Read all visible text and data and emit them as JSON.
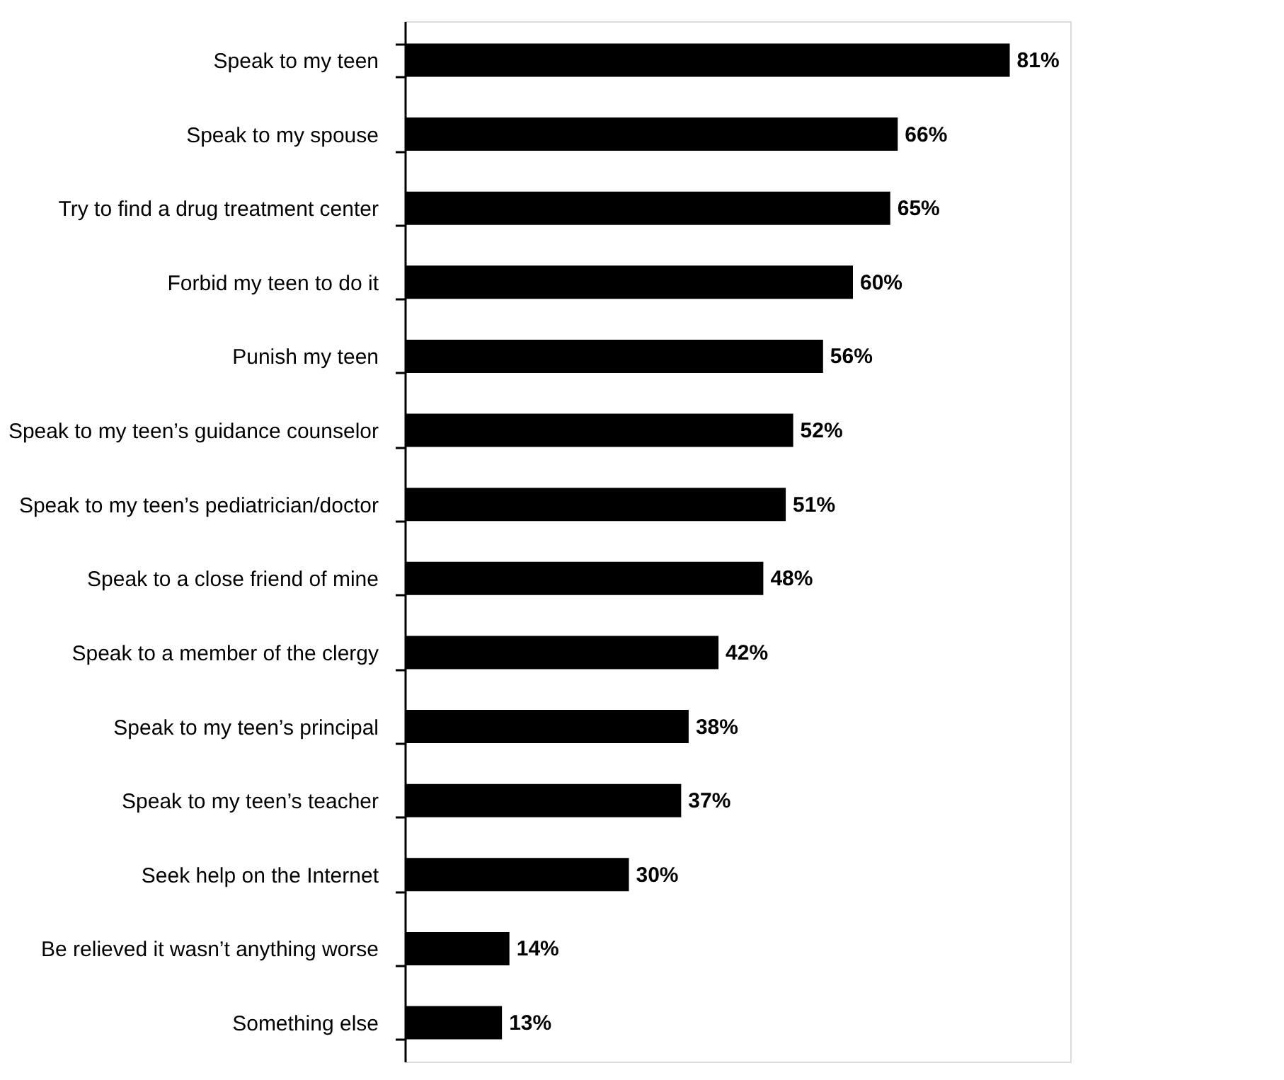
{
  "chart_data": {
    "type": "bar",
    "orientation": "horizontal",
    "categories": [
      "Speak to my teen",
      "Speak to my spouse",
      "Try to find a drug treatment center",
      "Forbid my teen to do it",
      "Punish my teen",
      "Speak to my teen’s guidance counselor",
      "Speak to my teen’s pediatrician/doctor",
      "Speak to a close friend of mine",
      "Speak to a member of the clergy",
      "Speak to my teen’s principal",
      "Speak to my teen’s teacher",
      "Seek help on the Internet",
      "Be relieved it wasn’t anything worse",
      "Something else"
    ],
    "values": [
      81,
      66,
      65,
      60,
      56,
      52,
      51,
      48,
      42,
      38,
      37,
      30,
      14,
      13
    ],
    "value_labels": [
      "81%",
      "66%",
      "65%",
      "60%",
      "56%",
      "52%",
      "51%",
      "48%",
      "42%",
      "38%",
      "37%",
      "30%",
      "14%",
      "13%"
    ],
    "color": "#000000"
  }
}
